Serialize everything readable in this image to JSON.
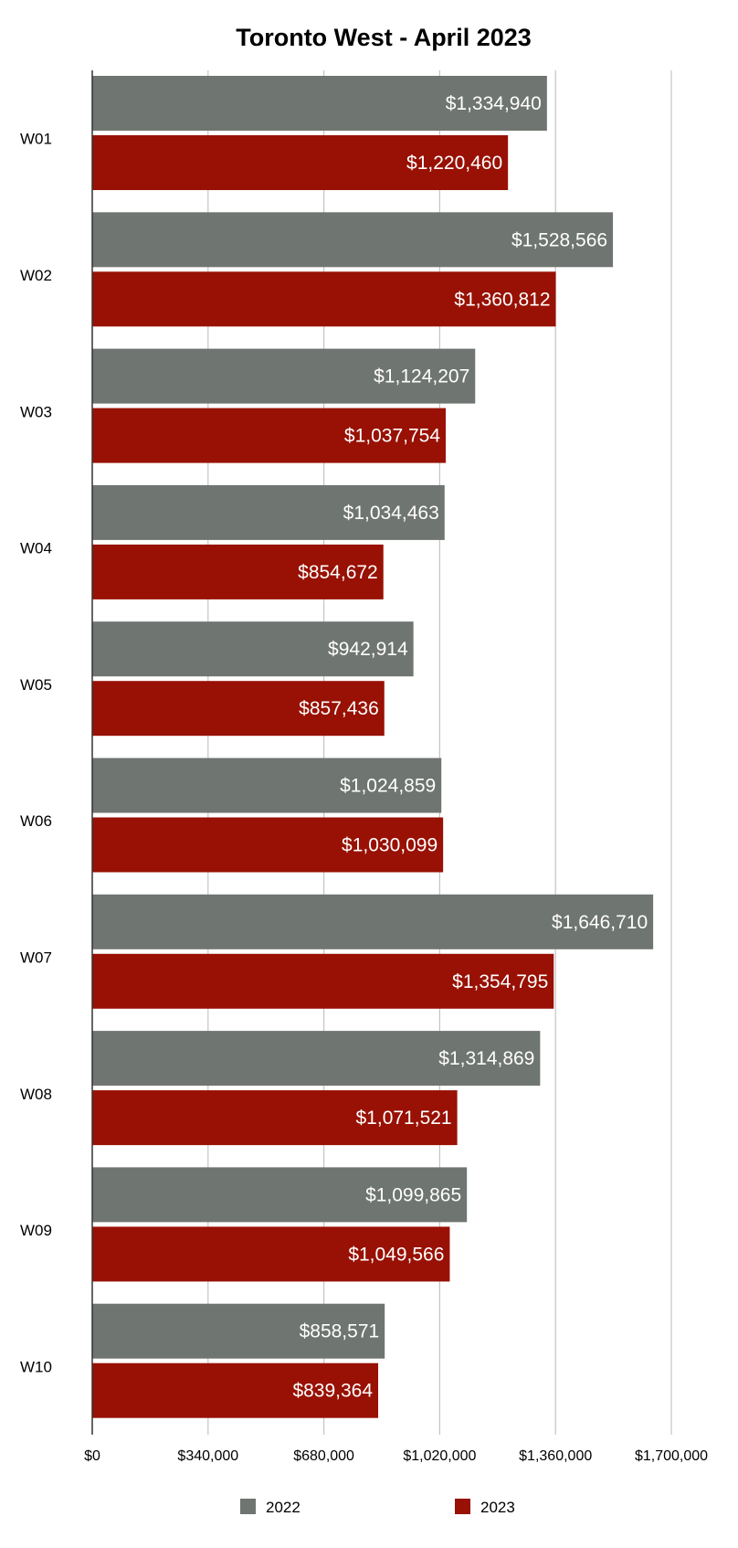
{
  "chart_data": {
    "type": "bar",
    "orientation": "horizontal",
    "title": "Toronto West - April 2023",
    "categories": [
      "W01",
      "W02",
      "W03",
      "W04",
      "W05",
      "W06",
      "W07",
      "W08",
      "W09",
      "W10"
    ],
    "series": [
      {
        "name": "2022",
        "color": "#6f7570",
        "values": [
          1334940,
          1528566,
          1124207,
          1034463,
          942914,
          1024859,
          1646710,
          1314869,
          1099865,
          858571
        ],
        "labels": [
          "$1,334,940",
          "$1,528,566",
          "$1,124,207",
          "$1,034,463",
          "$942,914",
          "$1,024,859",
          "$1,646,710",
          "$1,314,869",
          "$1,099,865",
          "$858,571"
        ]
      },
      {
        "name": "2023",
        "color": "#981104",
        "values": [
          1220460,
          1360812,
          1037754,
          854672,
          857436,
          1030099,
          1354795,
          1071521,
          1049566,
          839364
        ],
        "labels": [
          "$1,220,460",
          "$1,360,812",
          "$1,037,754",
          "$854,672",
          "$857,436",
          "$1,030,099",
          "$1,354,795",
          "$1,071,521",
          "$1,049,566",
          "$839,364"
        ]
      }
    ],
    "xlim": [
      0,
      1700000
    ],
    "xticks": [
      0,
      340000,
      680000,
      1020000,
      1360000,
      1700000
    ],
    "xtick_labels": [
      "$0",
      "$340,000",
      "$680,000",
      "$1,020,000",
      "$1,360,000",
      "$1,700,000"
    ],
    "grid": true,
    "legend_position": "bottom"
  }
}
